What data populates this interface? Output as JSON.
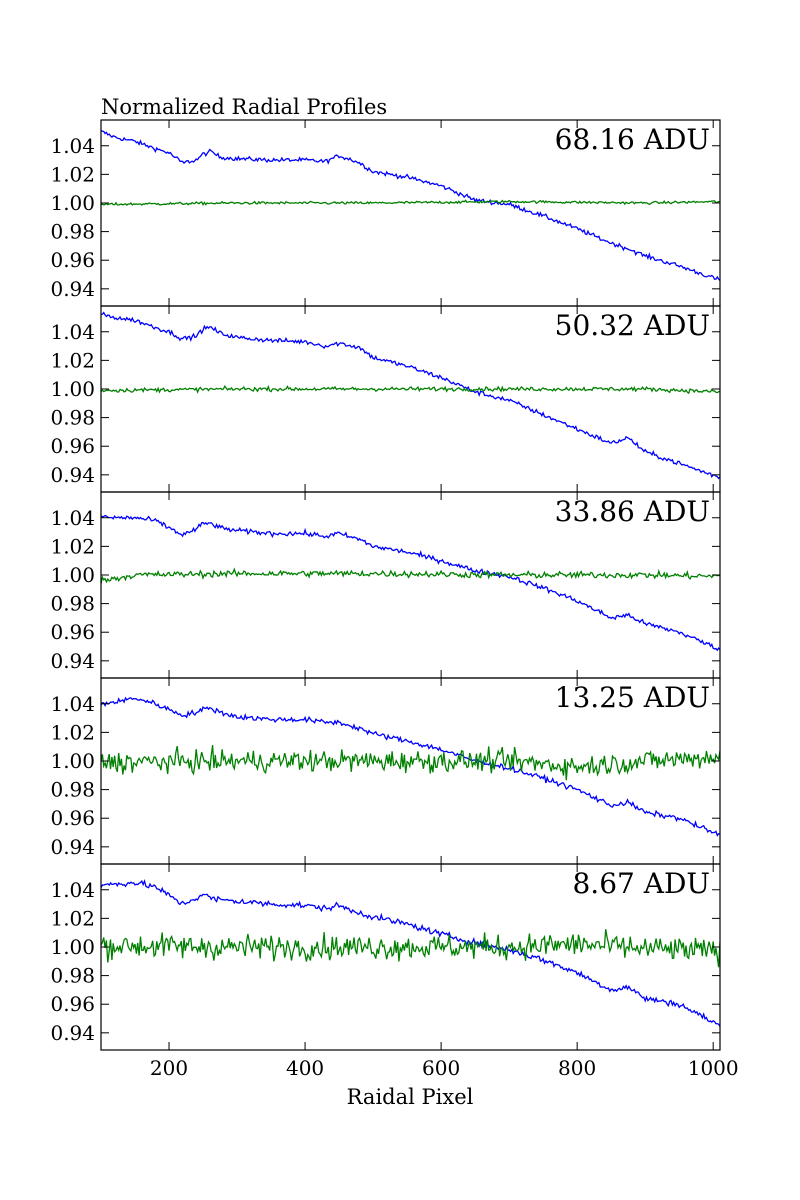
{
  "chart_data": {
    "type": "line",
    "title": "Normalized Radial Profiles",
    "xlabel": "Raidal Pixel",
    "xlim": [
      100,
      1010
    ],
    "ylim": [
      0.928,
      1.058
    ],
    "x_ticks": [
      200,
      400,
      600,
      800,
      1000
    ],
    "x_tick_labels": [
      "200",
      "400",
      "600",
      "800",
      "1000"
    ],
    "y_ticks": [
      0.94,
      0.96,
      0.98,
      1.0,
      1.02,
      1.04
    ],
    "y_tick_labels": [
      "0.94",
      "0.96",
      "0.98",
      "1.00",
      "1.02",
      "1.04"
    ],
    "grid": false,
    "colors": {
      "blue_series": "#0000ff",
      "green_series": "#008000"
    },
    "panels": [
      {
        "label": "68.16 ADU",
        "series": [
          {
            "color": "#0000ff",
            "noise": 0.0015,
            "x": [
              100,
              120,
              150,
              180,
              200,
              220,
              240,
              250,
              262,
              275,
              300,
              350,
              400,
              430,
              450,
              470,
              480,
              500,
              550,
              600,
              650,
              700,
              750,
              800,
              850,
              875,
              900,
              950,
              1010
            ],
            "y": [
              1.05,
              1.046,
              1.043,
              1.038,
              1.035,
              1.028,
              1.03,
              1.034,
              1.036,
              1.032,
              1.031,
              1.03,
              1.03,
              1.029,
              1.033,
              1.03,
              1.028,
              1.022,
              1.018,
              1.012,
              1.002,
              0.999,
              0.991,
              0.982,
              0.972,
              0.968,
              0.963,
              0.956,
              0.946
            ]
          },
          {
            "color": "#008000",
            "noise": 0.0009,
            "x": [
              100,
              300,
              500,
              700,
              900,
              1010
            ],
            "y": [
              0.999,
              1.0,
              1.0,
              1.001,
              1.0,
              1.001
            ]
          }
        ]
      },
      {
        "label": "50.32 ADU",
        "series": [
          {
            "color": "#0000ff",
            "noise": 0.0016,
            "x": [
              100,
              120,
              150,
              180,
              200,
              220,
              240,
              250,
              262,
              275,
              300,
              350,
              400,
              430,
              450,
              470,
              480,
              500,
              550,
              600,
              650,
              700,
              750,
              800,
              850,
              875,
              900,
              950,
              1010
            ],
            "y": [
              1.052,
              1.05,
              1.048,
              1.043,
              1.04,
              1.035,
              1.037,
              1.042,
              1.043,
              1.039,
              1.036,
              1.034,
              1.033,
              1.03,
              1.032,
              1.03,
              1.029,
              1.022,
              1.016,
              1.008,
              0.998,
              0.992,
              0.982,
              0.972,
              0.962,
              0.966,
              0.956,
              0.948,
              0.938
            ]
          },
          {
            "color": "#008000",
            "noise": 0.0014,
            "x": [
              100,
              300,
              500,
              700,
              900,
              1010
            ],
            "y": [
              0.999,
              1.0,
              1.0,
              1.0,
              1.0,
              0.998
            ]
          }
        ]
      },
      {
        "label": "33.86 ADU",
        "series": [
          {
            "color": "#0000ff",
            "noise": 0.0017,
            "x": [
              100,
              120,
              150,
              180,
              200,
              220,
              240,
              250,
              262,
              275,
              300,
              350,
              400,
              430,
              450,
              470,
              480,
              500,
              550,
              600,
              650,
              700,
              750,
              800,
              850,
              875,
              900,
              950,
              1010
            ],
            "y": [
              1.041,
              1.04,
              1.04,
              1.038,
              1.033,
              1.028,
              1.032,
              1.036,
              1.036,
              1.033,
              1.031,
              1.029,
              1.029,
              1.027,
              1.029,
              1.026,
              1.025,
              1.02,
              1.016,
              1.01,
              1.003,
              0.999,
              0.991,
              0.982,
              0.97,
              0.972,
              0.966,
              0.96,
              0.948
            ]
          },
          {
            "color": "#008000",
            "noise": 0.0022,
            "x": [
              100,
              150,
              300,
              500,
              700,
              900,
              1010
            ],
            "y": [
              0.996,
              1.0,
              1.001,
              1.001,
              1.0,
              1.0,
              0.999
            ]
          }
        ]
      },
      {
        "label": "13.25 ADU",
        "series": [
          {
            "color": "#0000ff",
            "noise": 0.0018,
            "x": [
              100,
              120,
              150,
              180,
              200,
              220,
              240,
              250,
              262,
              275,
              300,
              350,
              400,
              430,
              450,
              470,
              480,
              500,
              550,
              600,
              650,
              700,
              750,
              800,
              850,
              875,
              900,
              950,
              1010
            ],
            "y": [
              1.04,
              1.041,
              1.044,
              1.04,
              1.036,
              1.032,
              1.034,
              1.036,
              1.037,
              1.034,
              1.031,
              1.029,
              1.029,
              1.027,
              1.027,
              1.024,
              1.023,
              1.019,
              1.014,
              1.008,
              1.0,
              0.995,
              0.988,
              0.98,
              0.969,
              0.971,
              0.964,
              0.96,
              0.948
            ]
          },
          {
            "color": "#008000",
            "noise": 0.0075,
            "x": [
              100,
              300,
              500,
              700,
              800,
              900,
              1010
            ],
            "y": [
              0.999,
              1.0,
              1.0,
              1.0,
              0.996,
              1.0,
              1.003
            ]
          }
        ]
      },
      {
        "label": "8.67 ADU",
        "series": [
          {
            "color": "#0000ff",
            "noise": 0.0021,
            "x": [
              100,
              120,
              150,
              180,
              200,
              220,
              240,
              250,
              262,
              275,
              300,
              350,
              400,
              430,
              450,
              470,
              480,
              500,
              550,
              600,
              650,
              700,
              750,
              800,
              850,
              875,
              900,
              950,
              1010
            ],
            "y": [
              1.043,
              1.044,
              1.045,
              1.042,
              1.036,
              1.03,
              1.034,
              1.037,
              1.034,
              1.033,
              1.032,
              1.03,
              1.029,
              1.027,
              1.029,
              1.025,
              1.024,
              1.021,
              1.016,
              1.009,
              1.003,
              0.998,
              0.991,
              0.982,
              0.97,
              0.972,
              0.964,
              0.96,
              0.945
            ]
          },
          {
            "color": "#008000",
            "noise": 0.0085,
            "x": [
              100,
              300,
              500,
              700,
              800,
              900,
              1010
            ],
            "y": [
              1.001,
              1.0,
              1.0,
              1.0,
              1.002,
              0.999,
              0.997
            ]
          }
        ]
      }
    ]
  }
}
